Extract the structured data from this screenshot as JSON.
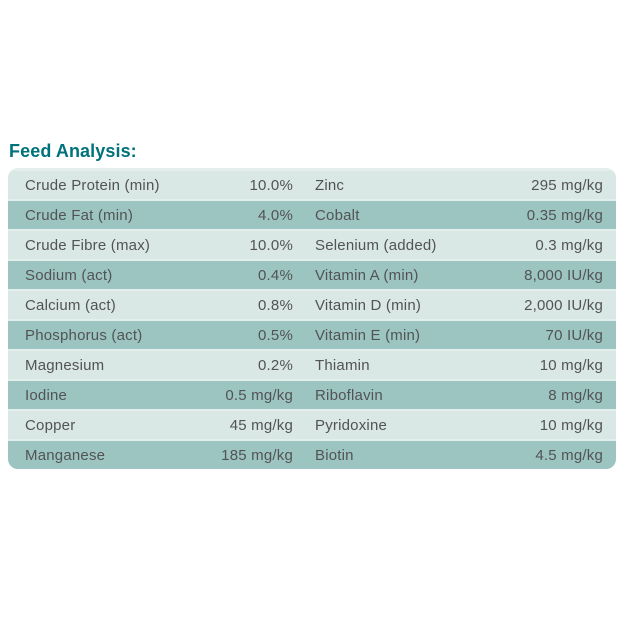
{
  "title": "Feed Analysis:",
  "colors": {
    "title": "#00727b",
    "row_light": "#d9e7e5",
    "row_dark": "#9cc5c2",
    "container_bg": "#e4eeec",
    "text": "#525355",
    "page_bg": "#ffffff"
  },
  "table": {
    "rows": [
      {
        "left_label": "Crude Protein (min)",
        "left_value": "10.0%",
        "right_label": "Zinc",
        "right_value": "295 mg/kg"
      },
      {
        "left_label": "Crude Fat (min)",
        "left_value": "4.0%",
        "right_label": "Cobalt",
        "right_value": "0.35 mg/kg"
      },
      {
        "left_label": "Crude Fibre (max)",
        "left_value": "10.0%",
        "right_label": "Selenium (added)",
        "right_value": "0.3 mg/kg"
      },
      {
        "left_label": "Sodium (act)",
        "left_value": "0.4%",
        "right_label": "Vitamin A (min)",
        "right_value": "8,000 IU/kg"
      },
      {
        "left_label": "Calcium (act)",
        "left_value": "0.8%",
        "right_label": "Vitamin D (min)",
        "right_value": "2,000 IU/kg"
      },
      {
        "left_label": "Phosphorus (act)",
        "left_value": "0.5%",
        "right_label": "Vitamin E (min)",
        "right_value": "70 IU/kg"
      },
      {
        "left_label": "Magnesium",
        "left_value": "0.2%",
        "right_label": "Thiamin",
        "right_value": "10 mg/kg"
      },
      {
        "left_label": "Iodine",
        "left_value": "0.5 mg/kg",
        "right_label": "Riboflavin",
        "right_value": "8 mg/kg"
      },
      {
        "left_label": "Copper",
        "left_value": "45 mg/kg",
        "right_label": "Pyridoxine",
        "right_value": "10 mg/kg"
      },
      {
        "left_label": "Manganese",
        "left_value": "185 mg/kg",
        "right_label": "Biotin",
        "right_value": "4.5 mg/kg"
      }
    ]
  }
}
